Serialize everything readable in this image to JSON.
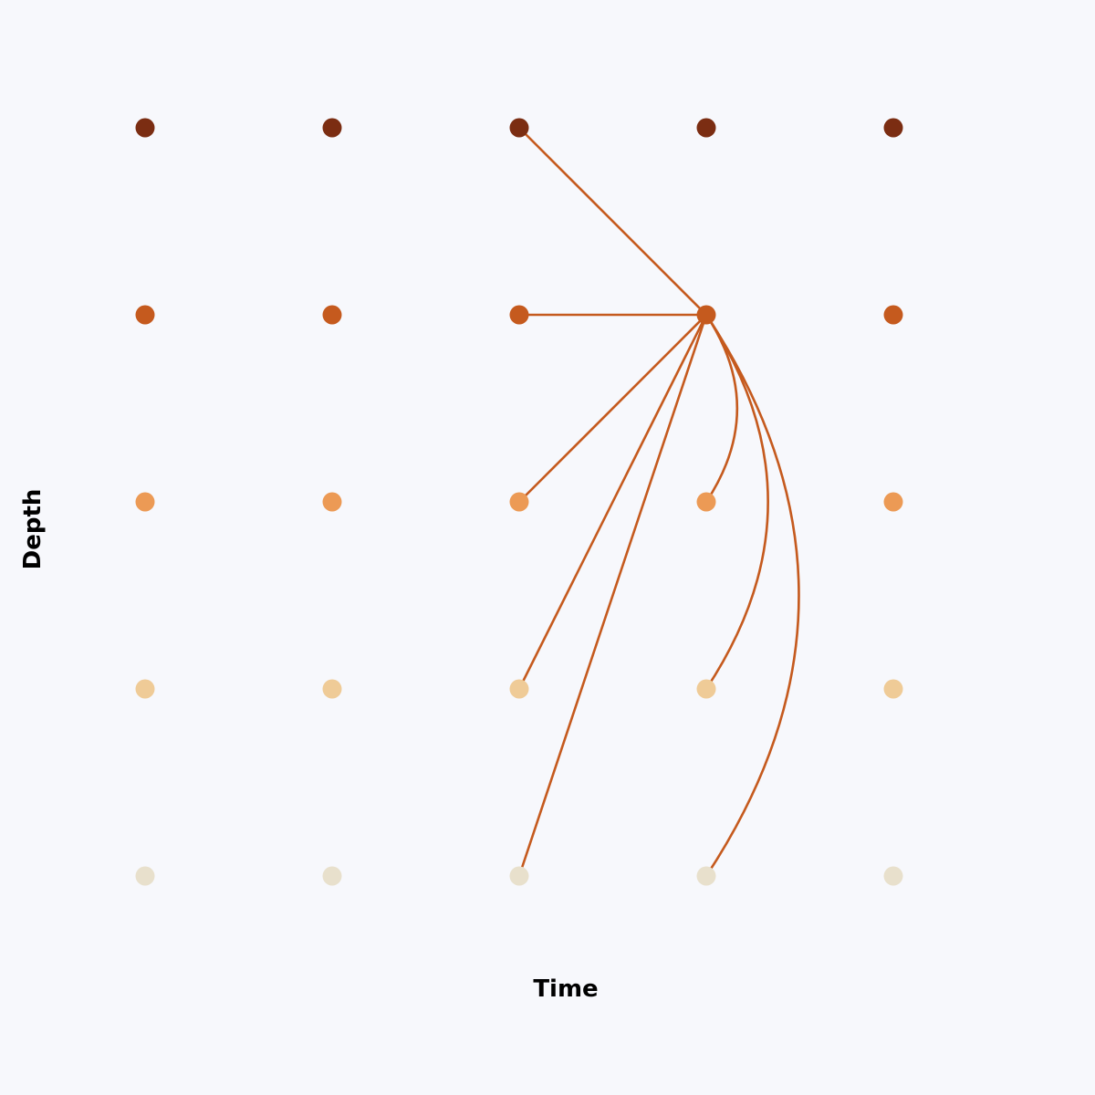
{
  "diagram": {
    "xlabel": "Time",
    "ylabel": "Depth",
    "time_steps": 5,
    "depth_levels": 5,
    "background_color": "#f7f8fc",
    "edge_color": "#c55a1e",
    "depth_colors": [
      "#7b2d12",
      "#c55a1e",
      "#ec9a55",
      "#efcb97",
      "#e8e0cc"
    ],
    "target_node": {
      "time": 4,
      "depth": 2
    },
    "edges": [
      {
        "from": {
          "time": 3,
          "depth": 1
        },
        "curved": false
      },
      {
        "from": {
          "time": 3,
          "depth": 2
        },
        "curved": false
      },
      {
        "from": {
          "time": 3,
          "depth": 3
        },
        "curved": false
      },
      {
        "from": {
          "time": 3,
          "depth": 4
        },
        "curved": false
      },
      {
        "from": {
          "time": 3,
          "depth": 5
        },
        "curved": false
      },
      {
        "from": {
          "time": 4,
          "depth": 3
        },
        "curved": true
      },
      {
        "from": {
          "time": 4,
          "depth": 4
        },
        "curved": true
      },
      {
        "from": {
          "time": 4,
          "depth": 5
        },
        "curved": true
      }
    ]
  }
}
